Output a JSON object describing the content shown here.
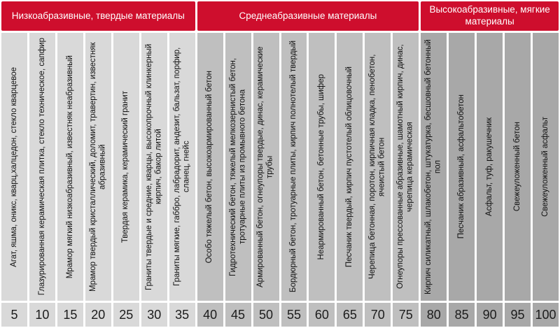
{
  "colors": {
    "header_red": "#ce0e2d",
    "group1_bg": "#d9d9d9",
    "group2_bg": "#bfbfbf",
    "group3_bg": "#a8a8a8",
    "header_text": "#ffffff",
    "text": "#101010",
    "background": "#ffffff"
  },
  "chart_data": {
    "type": "table",
    "value_axis": {
      "min": 5,
      "max": 100,
      "step": 5,
      "position": "bottom"
    },
    "legend_position": "top",
    "grid": false,
    "groups": [
      {
        "label": "Низкоабразивные, твердые материалы",
        "range": [
          5,
          35
        ],
        "color": "#d9d9d9"
      },
      {
        "label": "Среднеабразивные материалы",
        "range": [
          40,
          75
        ],
        "color": "#bfbfbf"
      },
      {
        "label": "Высокоабразивные, мягкие материалы",
        "range": [
          80,
          100
        ],
        "color": "#a8a8a8"
      }
    ],
    "columns": [
      {
        "value": "5",
        "group": 0,
        "material": "Агат, яшма, оникс, кварц,халцедон, стекло кварцевое"
      },
      {
        "value": "10",
        "group": 0,
        "material": "Глазурированная керамическая плитка, стекло техническое, сапфир"
      },
      {
        "value": "15",
        "group": 0,
        "material": "Мрамор мягкий низкоабразивный, известняк неабразивный"
      },
      {
        "value": "20",
        "group": 0,
        "material": "Мрамор твердый кристаллический, доломит, травертин, известняк абразивный"
      },
      {
        "value": "25",
        "group": 0,
        "material": "Твердая керамика, керамический гранит"
      },
      {
        "value": "30",
        "group": 0,
        "material": "Граниты твердые и средние, кварцы, высокопрочный клинкерный кирпич, бакор литой"
      },
      {
        "value": "35",
        "group": 0,
        "material": "Граниты мягкие, габбро, лабрадорит, андезит, бальзат, порфир, сланец, гнейс"
      },
      {
        "value": "40",
        "group": 1,
        "material": "Особо тяжелый бетон, высокоармированный бетон"
      },
      {
        "value": "45",
        "group": 1,
        "material": "Гидротехнический бетон, тяжелый мелкозернистый бетон, тротуарные плиты из промывного бетона"
      },
      {
        "value": "50",
        "group": 1,
        "material": "Армированный бетон, огнеупоры твердые, динас, керамические трубы"
      },
      {
        "value": "55",
        "group": 1,
        "material": "Бордюрный бетон, тротуарные плиты, кирпич полнотелый твердый"
      },
      {
        "value": "60",
        "group": 1,
        "material": "Неармированный бетон, бетонные трубы, шифер"
      },
      {
        "value": "65",
        "group": 1,
        "material": "Песчаник твердый, кирпич пустотелый облицовочный"
      },
      {
        "value": "70",
        "group": 1,
        "material": "Черепица бетонная, поротон, кирпичная кладка, пенобетон, ячеистый бетон"
      },
      {
        "value": "75",
        "group": 1,
        "material": "Огнеупоры прессованные абразивные, шамотный кирпич, динас, черепица керамическая"
      },
      {
        "value": "80",
        "group": 2,
        "material": "Кирпич силикатный, шлакобетон, штукатурка, бесшовный бетонный пол"
      },
      {
        "value": "85",
        "group": 2,
        "material": "Песчаник абразивный, асфальтобетон"
      },
      {
        "value": "90",
        "group": 2,
        "material": "Асфальт, туф, ракушечник"
      },
      {
        "value": "95",
        "group": 2,
        "material": "Свежеуложенный бетон"
      },
      {
        "value": "100",
        "group": 2,
        "material": "Свежеуложенный асфальт"
      }
    ]
  }
}
